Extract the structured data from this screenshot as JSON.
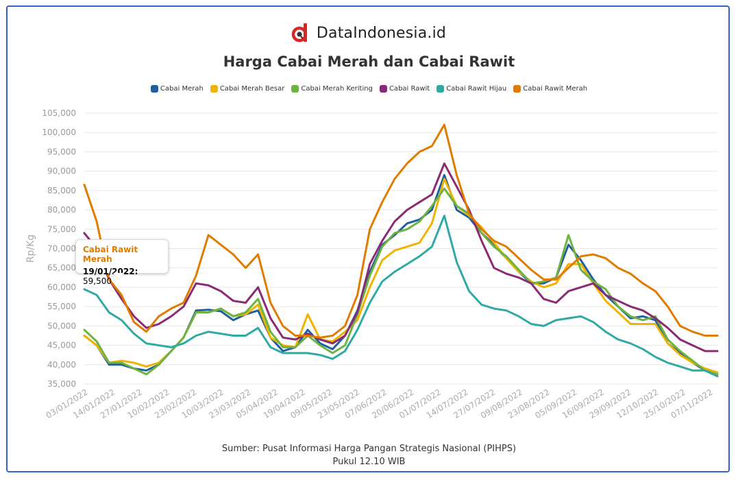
{
  "brand": {
    "name": "DataIndonesia.id",
    "logo_icon": "dataindonesia-logo-icon",
    "logo_color": "#d62828"
  },
  "chart_data": {
    "type": "line",
    "title": "Harga Cabai Merah dan Cabai Rawit",
    "ylabel": "Rp/Kg",
    "xlabel": "",
    "ylim": [
      35000,
      105000
    ],
    "y_ticks": [
      "35,000",
      "40,000",
      "45,000",
      "50,000",
      "55,000",
      "60,000",
      "65,000",
      "70,000",
      "75,000",
      "80,000",
      "85,000",
      "90,000",
      "95,000",
      "100,000",
      "105,000"
    ],
    "x_ticks": [
      "03/01/2022",
      "14/01/2022",
      "27/01/2022",
      "10/02/2022",
      "23/02/2022",
      "10/03/2022",
      "23/03/2022",
      "05/04/2022",
      "19/04/2022",
      "09/05/2022",
      "23/05/2022",
      "07/06/2022",
      "20/06/2022",
      "01/07/2022",
      "14/07/2022",
      "27/07/2022",
      "09/08/2022",
      "23/08/2022",
      "05/09/2022",
      "16/09/2022",
      "29/09/2022",
      "12/10/2022",
      "25/10/2022",
      "07/11/2022"
    ],
    "grid": true,
    "legend_position": "top-center",
    "series": [
      {
        "name": "Cabai Merah",
        "color": "#1f5f9e",
        "values": [
          47500,
          45000,
          40000,
          40000,
          39000,
          38500,
          40000,
          43500,
          47000,
          54000,
          54200,
          53800,
          51500,
          53000,
          54000,
          47000,
          43500,
          44500,
          49000,
          45500,
          44000,
          47500,
          54000,
          64000,
          71000,
          73500,
          76500,
          77500,
          80000,
          89000,
          80000,
          78000,
          74000,
          71000,
          67500,
          64000,
          61000,
          61000,
          62500,
          71000,
          67000,
          62000,
          58000,
          55000,
          52000,
          52500,
          51500,
          45500,
          43000,
          40500,
          38500,
          37000
        ]
      },
      {
        "name": "Cabai Merah Besar",
        "color": "#f0b400",
        "values": [
          47500,
          45000,
          40500,
          41000,
          40500,
          39500,
          40500,
          43500,
          47000,
          53500,
          53500,
          54500,
          52500,
          53000,
          55500,
          47000,
          45000,
          44500,
          53000,
          46500,
          46000,
          48500,
          51500,
          60000,
          67000,
          69500,
          70500,
          71500,
          76500,
          88000,
          81000,
          78500,
          75500,
          71500,
          67500,
          64000,
          61500,
          60000,
          61000,
          66000,
          66000,
          61000,
          56500,
          53500,
          50500,
          50500,
          50500,
          45500,
          42500,
          40500,
          39000,
          38000
        ]
      },
      {
        "name": "Cabai Merah Keriting",
        "color": "#6db33f",
        "values": [
          49000,
          46000,
          40500,
          40500,
          39000,
          37500,
          40000,
          43500,
          47000,
          53500,
          53500,
          54500,
          52500,
          53500,
          57000,
          48500,
          44500,
          44500,
          47500,
          45000,
          43000,
          45000,
          53000,
          63000,
          70500,
          74000,
          75000,
          77000,
          81000,
          85500,
          81000,
          79000,
          74000,
          70500,
          68000,
          64500,
          61000,
          61500,
          62500,
          73500,
          64500,
          61500,
          59500,
          55000,
          52500,
          51500,
          52500,
          46500,
          43500,
          41000,
          38500,
          37500
        ]
      },
      {
        "name": "Cabai Rawit",
        "color": "#8b2a74",
        "values": [
          74000,
          70000,
          62000,
          57000,
          52500,
          49500,
          50500,
          52500,
          55000,
          61000,
          60500,
          59000,
          56500,
          56000,
          60000,
          52000,
          47000,
          46500,
          48000,
          46500,
          45500,
          47500,
          53500,
          66000,
          72000,
          77000,
          80000,
          82000,
          84000,
          92000,
          86000,
          80000,
          72000,
          65000,
          63500,
          62500,
          61000,
          57000,
          56000,
          59000,
          60000,
          61000,
          58000,
          56500,
          55000,
          54000,
          52000,
          49500,
          46500,
          45000,
          43500,
          43500
        ]
      },
      {
        "name": "Cabai Rawit Hijau",
        "color": "#2fa9a3",
        "values": [
          59500,
          58000,
          53500,
          51500,
          48000,
          45500,
          45000,
          44500,
          45500,
          47500,
          48500,
          48000,
          47500,
          47500,
          49500,
          44500,
          43000,
          43000,
          43000,
          42500,
          41500,
          43500,
          49000,
          56000,
          61500,
          64000,
          66000,
          68000,
          70500,
          78500,
          66500,
          59000,
          55500,
          54500,
          54000,
          52500,
          50500,
          50000,
          51500,
          52000,
          52500,
          51000,
          48500,
          46500,
          45500,
          44000,
          42000,
          40500,
          39500,
          38500,
          38500,
          37000
        ]
      },
      {
        "name": "Cabai Rawit Merah",
        "color": "#e07b00",
        "values": [
          86500,
          77000,
          62000,
          58000,
          51000,
          48500,
          52500,
          54500,
          56000,
          63000,
          73500,
          71000,
          68500,
          65000,
          68500,
          56000,
          50000,
          47500,
          47500,
          47000,
          47500,
          50000,
          58000,
          75000,
          82000,
          88000,
          92000,
          95000,
          96500,
          102000,
          89000,
          79000,
          75000,
          72000,
          70500,
          67500,
          64500,
          62000,
          62000,
          65000,
          68000,
          68500,
          67500,
          65000,
          63500,
          61000,
          59000,
          55000,
          50000,
          48500,
          47500,
          47500
        ]
      }
    ],
    "tooltip": {
      "series": "Cabai Rawit Merah",
      "date": "19/01/2022",
      "value": "59,500"
    }
  },
  "source": {
    "line1": "Sumber: Pusat Informasi Harga Pangan Strategis Nasional (PIHPS)",
    "line2": "Pukul 12.10 WIB"
  }
}
